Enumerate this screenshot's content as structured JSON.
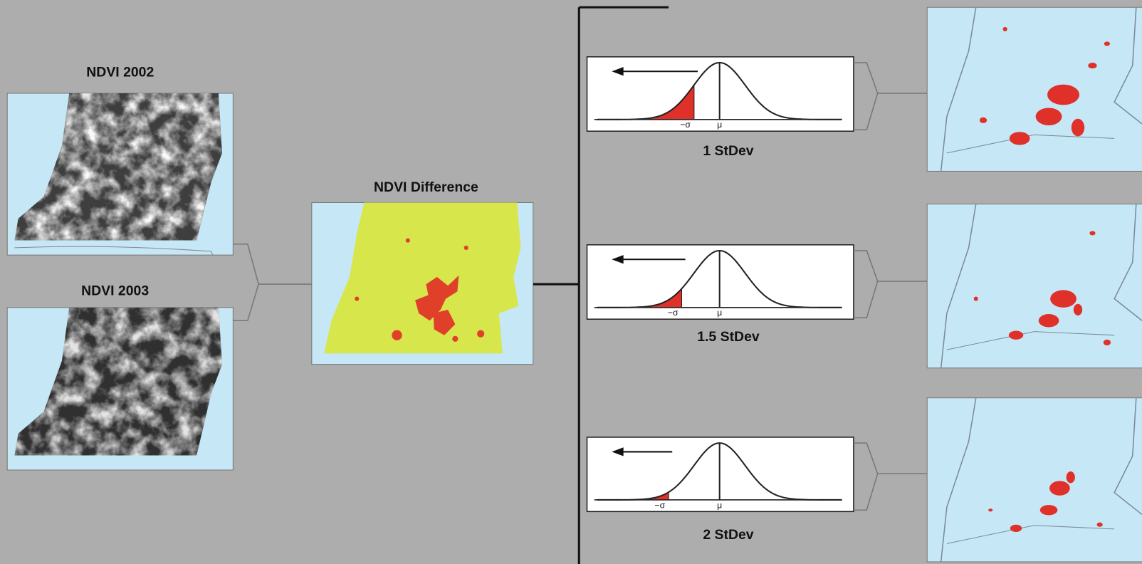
{
  "inputs": [
    {
      "label": "NDVI 2002"
    },
    {
      "label": "NDVI 2003"
    }
  ],
  "difference": {
    "label": "NDVI Difference"
  },
  "thresholds": [
    {
      "label": "1 StDev",
      "sigma_label": "−σ",
      "mean_label": "μ"
    },
    {
      "label": "1.5 StDev",
      "sigma_label": "−σ",
      "mean_label": "μ"
    },
    {
      "label": "2 StDev",
      "sigma_label": "−σ",
      "mean_label": "μ"
    }
  ]
}
